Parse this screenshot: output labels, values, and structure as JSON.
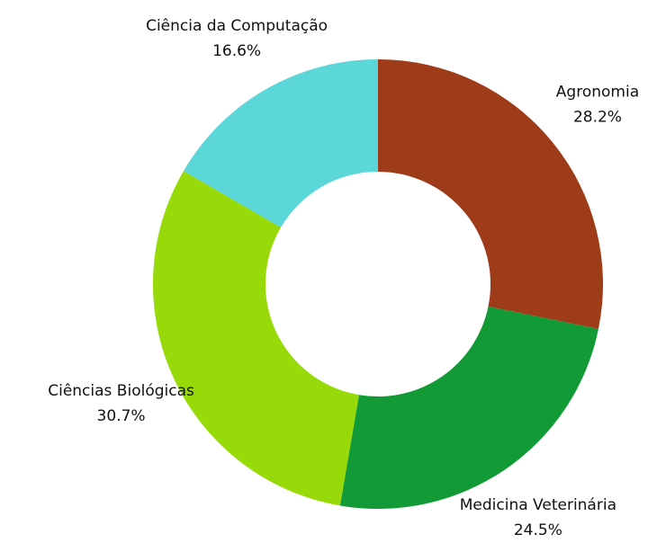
{
  "chart_data": {
    "type": "donut",
    "categories": [
      "Agronomia",
      "Medicina Veterinária",
      "Ciências Biológicas",
      "Ciência da Computação"
    ],
    "values": [
      28.2,
      24.5,
      30.7,
      16.6
    ],
    "value_labels": [
      "28.2%",
      "24.5%",
      "30.7%",
      "16.6%"
    ],
    "colors": [
      "#9e3c19",
      "#129a36",
      "#98d909",
      "#5bd6d9"
    ]
  }
}
